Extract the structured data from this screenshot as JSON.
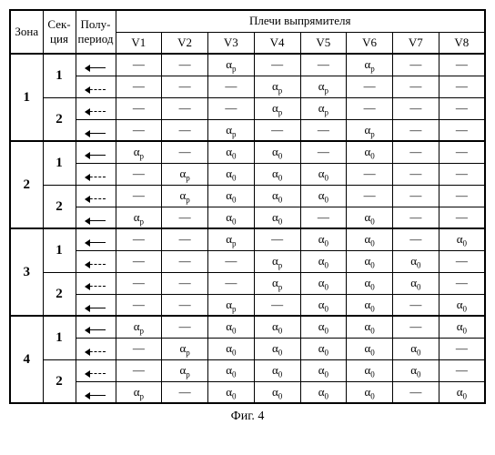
{
  "caption": "Фиг. 4",
  "headers": {
    "zone": "Зона",
    "section": "Сек-\nция",
    "halfperiod": "Полу-\nпериод",
    "arms": "Плечи выпрямителя",
    "v": [
      "V1",
      "V2",
      "V3",
      "V4",
      "V5",
      "V6",
      "V7",
      "V8"
    ]
  },
  "symbols": {
    "dash": "—",
    "ap": "α<sub>p</sub>",
    "a0": "α<sub>0</sub>"
  },
  "zones": [
    {
      "zone": "1",
      "sections": [
        {
          "sec": "1",
          "rows": [
            {
              "arrow": "solid",
              "cells": [
                "dash",
                "dash",
                "ap",
                "dash",
                "dash",
                "ap",
                "dash",
                "dash"
              ]
            },
            {
              "arrow": "dash",
              "cells": [
                "dash",
                "dash",
                "dash",
                "ap",
                "ap",
                "dash",
                "dash",
                "dash"
              ]
            }
          ]
        },
        {
          "sec": "2",
          "rows": [
            {
              "arrow": "dash",
              "cells": [
                "dash",
                "dash",
                "dash",
                "ap",
                "ap",
                "dash",
                "dash",
                "dash"
              ]
            },
            {
              "arrow": "solid",
              "cells": [
                "dash",
                "dash",
                "ap",
                "dash",
                "dash",
                "ap",
                "dash",
                "dash"
              ]
            }
          ]
        }
      ]
    },
    {
      "zone": "2",
      "sections": [
        {
          "sec": "1",
          "rows": [
            {
              "arrow": "solid",
              "cells": [
                "ap",
                "dash",
                "a0",
                "a0",
                "dash",
                "a0",
                "dash",
                "dash"
              ]
            },
            {
              "arrow": "dash",
              "cells": [
                "dash",
                "ap",
                "a0",
                "a0",
                "a0",
                "dash",
                "dash",
                "dash"
              ]
            }
          ]
        },
        {
          "sec": "2",
          "rows": [
            {
              "arrow": "dash",
              "cells": [
                "dash",
                "ap",
                "a0",
                "a0",
                "a0",
                "dash",
                "dash",
                "dash"
              ]
            },
            {
              "arrow": "solid",
              "cells": [
                "ap",
                "dash",
                "a0",
                "a0",
                "dash",
                "a0",
                "dash",
                "dash"
              ]
            }
          ]
        }
      ]
    },
    {
      "zone": "3",
      "sections": [
        {
          "sec": "1",
          "rows": [
            {
              "arrow": "solid",
              "cells": [
                "dash",
                "dash",
                "ap",
                "dash",
                "a0",
                "a0",
                "dash",
                "a0"
              ]
            },
            {
              "arrow": "dash",
              "cells": [
                "dash",
                "dash",
                "dash",
                "ap",
                "a0",
                "a0",
                "a0",
                "dash"
              ]
            }
          ]
        },
        {
          "sec": "2",
          "rows": [
            {
              "arrow": "dash",
              "cells": [
                "dash",
                "dash",
                "dash",
                "ap",
                "a0",
                "a0",
                "a0",
                "dash"
              ]
            },
            {
              "arrow": "solid",
              "cells": [
                "dash",
                "dash",
                "ap",
                "dash",
                "a0",
                "a0",
                "dash",
                "a0"
              ]
            }
          ]
        }
      ]
    },
    {
      "zone": "4",
      "sections": [
        {
          "sec": "1",
          "rows": [
            {
              "arrow": "solid",
              "cells": [
                "ap",
                "dash",
                "a0",
                "a0",
                "a0",
                "a0",
                "dash",
                "a0"
              ]
            },
            {
              "arrow": "dash",
              "cells": [
                "dash",
                "ap",
                "a0",
                "a0",
                "a0",
                "a0",
                "a0",
                "dash"
              ]
            }
          ]
        },
        {
          "sec": "2",
          "rows": [
            {
              "arrow": "dash",
              "cells": [
                "dash",
                "ap",
                "a0",
                "a0",
                "a0",
                "a0",
                "a0",
                "dash"
              ]
            },
            {
              "arrow": "solid",
              "cells": [
                "ap",
                "dash",
                "a0",
                "a0",
                "a0",
                "a0",
                "dash",
                "a0"
              ]
            }
          ]
        }
      ]
    }
  ]
}
